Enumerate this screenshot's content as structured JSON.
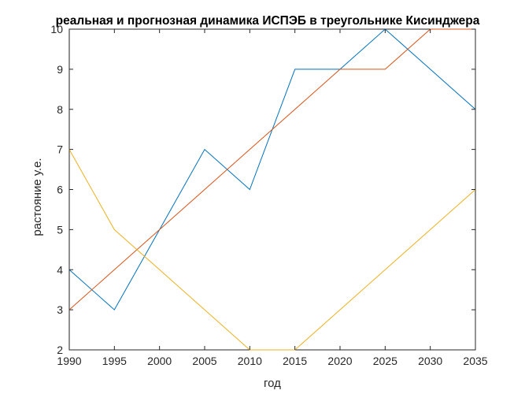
{
  "chart_data": {
    "type": "line",
    "title": "реальная и прогнозная динамика ИСПЭБ в треугольнике Кисинджера",
    "xlabel": "год",
    "ylabel": "растояние у.е.",
    "x": [
      1990,
      1995,
      2000,
      2005,
      2010,
      2015,
      2020,
      2025,
      2030,
      2035
    ],
    "xlim": [
      1990,
      2035
    ],
    "ylim": [
      2,
      10
    ],
    "xticks": [
      "1990",
      "1995",
      "2000",
      "2005",
      "2010",
      "2015",
      "2020",
      "2025",
      "2030",
      "2035"
    ],
    "yticks": [
      "2",
      "3",
      "4",
      "5",
      "6",
      "7",
      "8",
      "9",
      "10"
    ],
    "grid": false,
    "series": [
      {
        "color": "#0072BD",
        "values": [
          4,
          3,
          5,
          7,
          6,
          9,
          9,
          10,
          9,
          8
        ]
      },
      {
        "color": "#D95319",
        "values": [
          3,
          4,
          5,
          6,
          7,
          8,
          9,
          9,
          10,
          10
        ]
      },
      {
        "color": "#EDB120",
        "values": [
          7,
          5,
          4,
          3,
          2,
          2,
          3,
          4,
          5,
          6
        ]
      }
    ]
  }
}
